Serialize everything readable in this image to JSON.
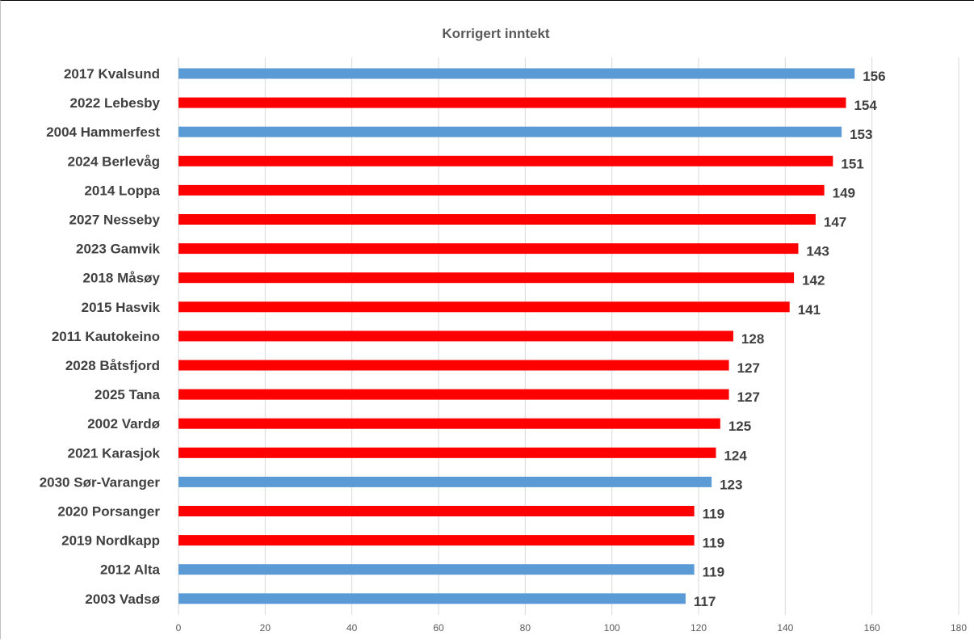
{
  "chart_data": {
    "type": "bar",
    "orientation": "horizontal",
    "title": "Korrigert inntekt",
    "xlabel": "",
    "ylabel": "",
    "xlim": [
      0,
      180
    ],
    "ticks": [
      0,
      20,
      40,
      60,
      80,
      100,
      120,
      140,
      160,
      180
    ],
    "tick_labels": [
      "0",
      "20",
      "40",
      "60",
      "80",
      "100",
      "120",
      "140",
      "160",
      "180"
    ],
    "grid": "vertical",
    "legend": "none",
    "colors": {
      "blue": "#5b9bd5",
      "red": "#ff0000",
      "grid": "#d9d9d9",
      "text": "#404040"
    },
    "categories": [
      "2017 Kvalsund",
      "2022 Lebesby",
      "2004 Hammerfest",
      "2024 Berlevåg",
      "2014 Loppa",
      "2027 Nesseby",
      "2023 Gamvik",
      "2018 Måsøy",
      "2015 Hasvik",
      "2011 Kautokeino",
      "2028 Båtsfjord",
      "2025 Tana",
      "2002 Vardø",
      "2021 Karasjok",
      "2030 Sør-Varanger",
      "2020 Porsanger",
      "2019 Nordkapp",
      "2012 Alta",
      "2003 Vadsø"
    ],
    "values": [
      156,
      154,
      153,
      151,
      149,
      147,
      143,
      142,
      141,
      128,
      127,
      127,
      125,
      124,
      123,
      119,
      119,
      119,
      117
    ],
    "value_labels": [
      "156",
      "154",
      "153",
      "151",
      "149",
      "147",
      "143",
      "142",
      "141",
      "128",
      "127",
      "127",
      "125",
      "124",
      "123",
      "119",
      "119",
      "119",
      "117"
    ],
    "bar_colors": [
      "blue",
      "red",
      "blue",
      "red",
      "red",
      "red",
      "red",
      "red",
      "red",
      "red",
      "red",
      "red",
      "red",
      "red",
      "blue",
      "red",
      "red",
      "blue",
      "blue"
    ]
  }
}
